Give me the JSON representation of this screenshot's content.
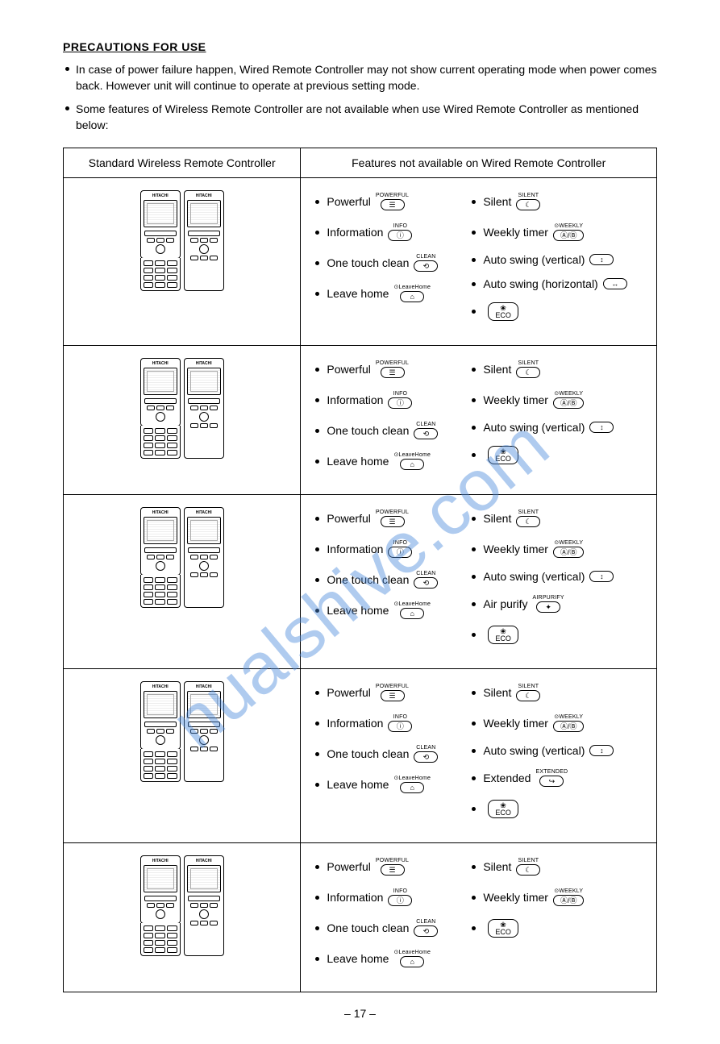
{
  "watermark": "nualshive.com",
  "title": "PRECAUTIONS FOR USE",
  "bullets": [
    "In case of power failure happen, Wired Remote Controller may not show current operating mode when power comes back. However unit will continue to operate at previous setting mode.",
    "Some features of Wireless Remote Controller are not available when use Wired Remote Controller as mentioned below:"
  ],
  "table": {
    "headers": [
      "Standard Wireless Remote Controller",
      "Features not available on Wired Remote Controller"
    ],
    "rows": [
      {
        "left": [
          {
            "label": "Powerful",
            "chip_label": "POWERFUL",
            "chip": "☰"
          },
          {
            "label": "Information",
            "chip_label": "INFO",
            "chip": "ⓘ"
          },
          {
            "label": "One touch clean",
            "chip_label": "CLEAN",
            "chip": "⟲"
          },
          {
            "label": "Leave home",
            "chip_label": "⊙LeaveHome",
            "chip": "⌂"
          }
        ],
        "right": [
          {
            "label": "Silent",
            "chip_label": "SILENT",
            "chip": "☾"
          },
          {
            "label": "Weekly timer",
            "chip_label": "⊙WEEKLY",
            "chip": "Ⓐ/Ⓑ"
          },
          {
            "label": "Auto swing (vertical)",
            "chip_label": "",
            "chip": "↕"
          },
          {
            "label": "Auto swing (horizontal)",
            "chip_label": "",
            "chip": "↔"
          },
          {
            "label": "",
            "chip_label": "",
            "chip": "❀\nECO"
          }
        ]
      },
      {
        "left": [
          {
            "label": "Powerful",
            "chip_label": "POWERFUL",
            "chip": "☰"
          },
          {
            "label": "Information",
            "chip_label": "INFO",
            "chip": "ⓘ"
          },
          {
            "label": "One touch clean",
            "chip_label": "CLEAN",
            "chip": "⟲"
          },
          {
            "label": "Leave home",
            "chip_label": "⊙LeaveHome",
            "chip": "⌂"
          }
        ],
        "right": [
          {
            "label": "Silent",
            "chip_label": "SILENT",
            "chip": "☾"
          },
          {
            "label": "Weekly timer",
            "chip_label": "⊙WEEKLY",
            "chip": "Ⓐ/Ⓑ"
          },
          {
            "label": "Auto swing (vertical)",
            "chip_label": "",
            "chip": "↕"
          },
          {
            "label": "",
            "chip_label": "",
            "chip": "❀\nECO"
          }
        ]
      },
      {
        "left": [
          {
            "label": "Powerful",
            "chip_label": "POWERFUL",
            "chip": "☰"
          },
          {
            "label": "Information",
            "chip_label": "INFO",
            "chip": "ⓘ"
          },
          {
            "label": "One touch clean",
            "chip_label": "CLEAN",
            "chip": "⟲"
          },
          {
            "label": "Leave home",
            "chip_label": "⊙LeaveHome",
            "chip": "⌂"
          }
        ],
        "right": [
          {
            "label": "Silent",
            "chip_label": "SILENT",
            "chip": "☾"
          },
          {
            "label": "Weekly timer",
            "chip_label": "⊙WEEKLY",
            "chip": "Ⓐ/Ⓑ"
          },
          {
            "label": "Auto swing (vertical)",
            "chip_label": "",
            "chip": "↕"
          },
          {
            "label": "Air purify",
            "chip_label": "AIRPURIFY",
            "chip": "✦"
          },
          {
            "label": "",
            "chip_label": "",
            "chip": "❀\nECO"
          }
        ]
      },
      {
        "left": [
          {
            "label": "Powerful",
            "chip_label": "POWERFUL",
            "chip": "☰"
          },
          {
            "label": "Information",
            "chip_label": "INFO",
            "chip": "ⓘ"
          },
          {
            "label": "One touch clean",
            "chip_label": "CLEAN",
            "chip": "⟲"
          },
          {
            "label": "Leave home",
            "chip_label": "⊙LeaveHome",
            "chip": "⌂"
          }
        ],
        "right": [
          {
            "label": "Silent",
            "chip_label": "SILENT",
            "chip": "☾"
          },
          {
            "label": "Weekly timer",
            "chip_label": "⊙WEEKLY",
            "chip": "Ⓐ/Ⓑ"
          },
          {
            "label": "Auto swing (vertical)",
            "chip_label": "",
            "chip": "↕"
          },
          {
            "label": "Extended",
            "chip_label": "EXTENDED",
            "chip": "↪"
          },
          {
            "label": "",
            "chip_label": "",
            "chip": "❀\nECO"
          }
        ]
      },
      {
        "left": [
          {
            "label": "Powerful",
            "chip_label": "POWERFUL",
            "chip": "☰"
          },
          {
            "label": "Information",
            "chip_label": "INFO",
            "chip": "ⓘ"
          },
          {
            "label": "One touch clean",
            "chip_label": "CLEAN",
            "chip": "⟲"
          },
          {
            "label": "Leave home",
            "chip_label": "⊙LeaveHome",
            "chip": "⌂"
          }
        ],
        "right": [
          {
            "label": "Silent",
            "chip_label": "SILENT",
            "chip": "☾"
          },
          {
            "label": "Weekly timer",
            "chip_label": "⊙WEEKLY",
            "chip": "Ⓐ/Ⓑ"
          },
          {
            "label": "",
            "chip_label": "",
            "chip": "❀\nECO"
          }
        ]
      }
    ]
  },
  "page_number": "– 17 –",
  "remote_brand": "HITACHI"
}
